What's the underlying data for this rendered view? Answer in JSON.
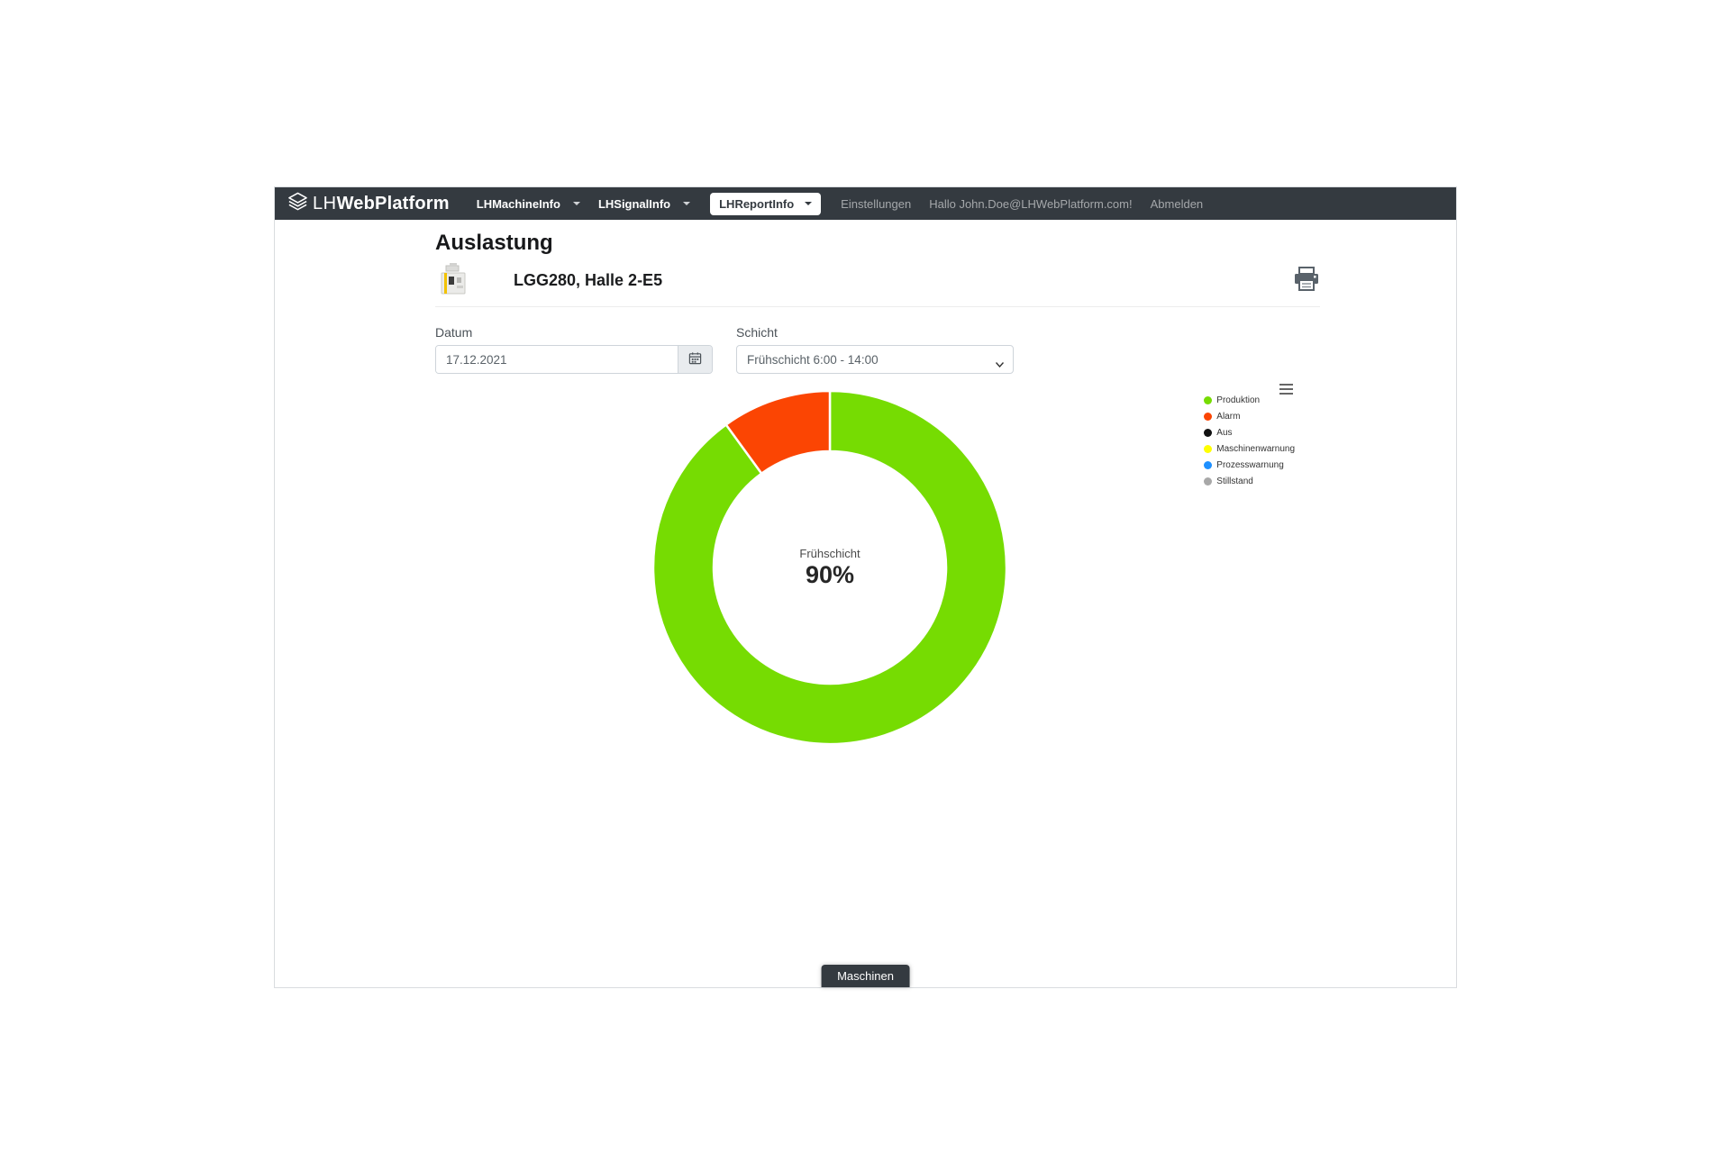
{
  "navbar": {
    "brand": {
      "prefix": "LH",
      "name": "WebPlatform"
    },
    "menus": [
      {
        "label": "LHMachineInfo"
      },
      {
        "label": "LHSignalInfo"
      },
      {
        "label": "LHReportInfo"
      }
    ],
    "active_menu": "LHReportInfo",
    "settings_label": "Einstellungen",
    "greeting": "Hallo John.Doe@LHWebPlatform.com!",
    "logout_label": "Abmelden"
  },
  "page": {
    "title": "Auslastung",
    "machine_name": "LGG280, Halle 2-E5"
  },
  "filters": {
    "date_label": "Datum",
    "date_value": "17.12.2021",
    "shift_label": "Schicht",
    "shift_selected": "Frühschicht 6:00 - 14:00"
  },
  "chart_data": {
    "type": "pie",
    "donut": true,
    "title": "",
    "center_label": "Frühschicht",
    "center_value": "90%",
    "start_angle": 0,
    "direction": "clockwise",
    "series": [
      {
        "name": "Produktion",
        "value": 90,
        "color": "#76dc02"
      },
      {
        "name": "Alarm",
        "value": 10,
        "color": "#fb4503"
      }
    ],
    "legend_position": "right",
    "legend": [
      {
        "label": "Produktion",
        "color": "#76dc02"
      },
      {
        "label": "Alarm",
        "color": "#fb4503"
      },
      {
        "label": "Aus",
        "color": "#111111"
      },
      {
        "label": "Maschinenwarnung",
        "color": "#ffff00"
      },
      {
        "label": "Prozesswarnung",
        "color": "#1e90ff"
      },
      {
        "label": "Stillstand",
        "color": "#a8a8a8"
      }
    ]
  },
  "footer": {
    "tab_label": "Maschinen"
  },
  "colors": {
    "navbar_bg": "#343a40",
    "accent_green": "#76dc02",
    "accent_red": "#fb4503"
  }
}
